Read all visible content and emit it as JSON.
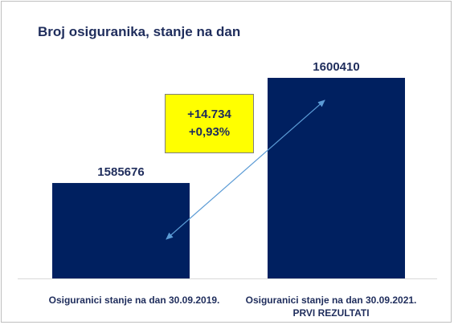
{
  "chart_data": {
    "type": "bar",
    "title": "Broj osiguranika, stanje na dan",
    "categories": [
      "Osiguranici stanje na dan 30.09.2019.",
      "Osiguranici stanje na dan 30.09.2021. PRVI REZULTATI"
    ],
    "values": [
      1585676,
      1600410
    ],
    "data_labels": [
      "1585676",
      "1600410"
    ],
    "bar_color": "#002060",
    "annotation": {
      "lines": [
        "+14.734",
        "+0,93%"
      ],
      "background": "#ffff00",
      "arrow_color": "#5b9bd5"
    },
    "xlabel": "",
    "ylabel": "",
    "grid": false,
    "legend": "none"
  }
}
